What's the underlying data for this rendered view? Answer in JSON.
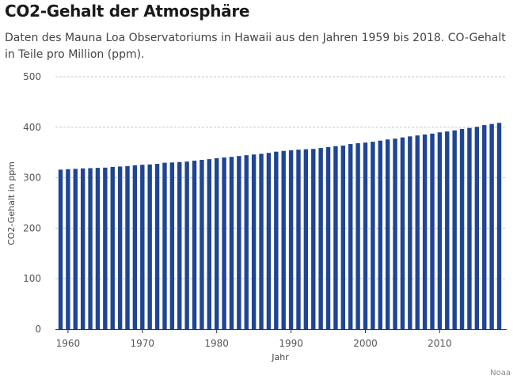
{
  "header": {
    "title": "CO2-Gehalt der Atmosphäre",
    "subtitle": "Daten des Mauna Loa Observatoriums in Hawaii aus den Jahren 1959 bis 2018. CO-Gehalt in Teile pro Million (ppm)."
  },
  "footer": {
    "source": "Noaa"
  },
  "colors": {
    "bar": "#1f4594",
    "grid": "#c8c8c8",
    "axis": "#333333"
  },
  "chart_data": {
    "type": "bar",
    "title": "CO2-Gehalt der Atmosphäre",
    "xlabel": "Jahr",
    "ylabel": "CO2-Gehalt in ppm",
    "ylim": [
      0,
      500
    ],
    "yticks": [
      0,
      100,
      200,
      300,
      400,
      500
    ],
    "xticks": [
      1960,
      1970,
      1980,
      1990,
      2000,
      2010
    ],
    "grid": "horizontal dashed",
    "categories": [
      1959,
      1960,
      1961,
      1962,
      1963,
      1964,
      1965,
      1966,
      1967,
      1968,
      1969,
      1970,
      1971,
      1972,
      1973,
      1974,
      1975,
      1976,
      1977,
      1978,
      1979,
      1980,
      1981,
      1982,
      1983,
      1984,
      1985,
      1986,
      1987,
      1988,
      1989,
      1990,
      1991,
      1992,
      1993,
      1994,
      1995,
      1996,
      1997,
      1998,
      1999,
      2000,
      2001,
      2002,
      2003,
      2004,
      2005,
      2006,
      2007,
      2008,
      2009,
      2010,
      2011,
      2012,
      2013,
      2014,
      2015,
      2016,
      2017,
      2018
    ],
    "values": [
      316.0,
      316.9,
      317.6,
      318.5,
      319.0,
      319.6,
      320.0,
      321.4,
      322.2,
      323.1,
      324.6,
      325.7,
      326.3,
      327.5,
      329.7,
      330.2,
      331.1,
      332.0,
      333.8,
      335.4,
      336.8,
      338.7,
      340.1,
      341.4,
      343.0,
      344.6,
      346.0,
      347.4,
      349.2,
      351.6,
      353.1,
      354.4,
      355.6,
      356.4,
      357.1,
      358.8,
      360.8,
      362.6,
      363.7,
      366.7,
      368.4,
      369.6,
      371.3,
      373.5,
      375.8,
      377.5,
      379.8,
      381.9,
      383.8,
      385.6,
      387.4,
      389.9,
      391.6,
      393.8,
      396.5,
      398.6,
      400.8,
      404.2,
      406.5,
      408.7
    ]
  }
}
